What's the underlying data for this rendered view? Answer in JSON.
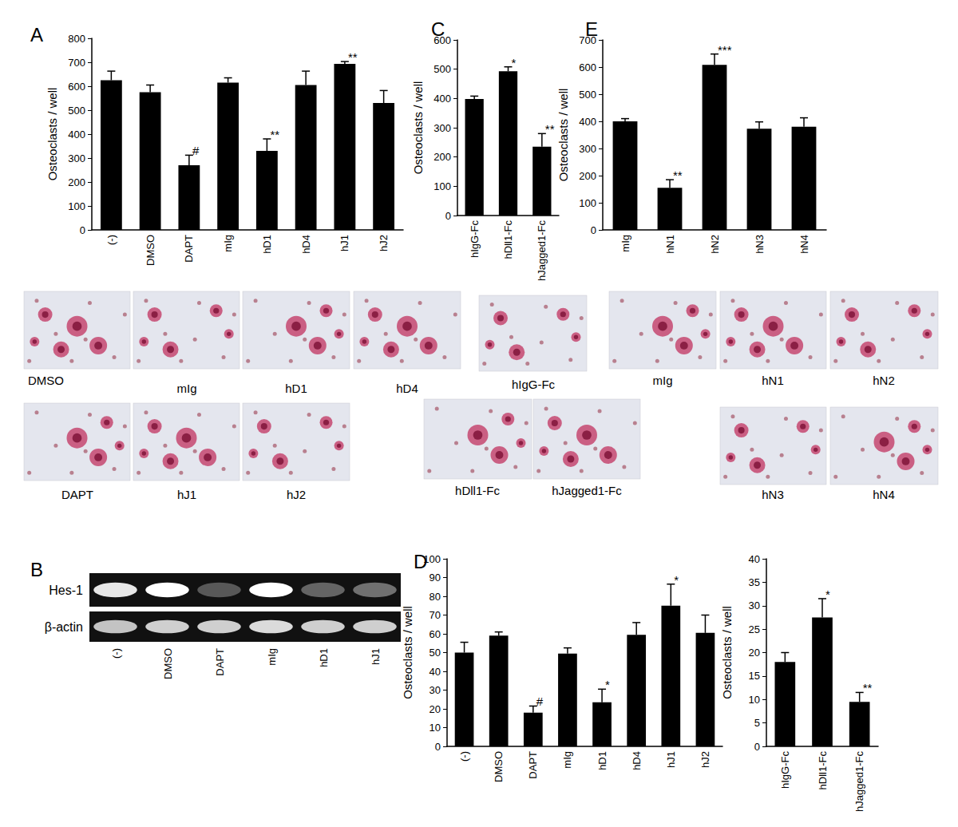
{
  "panel_labels": [
    "A",
    "B",
    "C",
    "D",
    "E"
  ],
  "chart_data": [
    {
      "type": "bar",
      "ylabel": "Osteoclasts / well",
      "color": "#000000",
      "categories": [
        "(-)",
        "DMSO",
        "DAPT",
        "mIg",
        "hD1",
        "hD4",
        "hJ1",
        "hJ2"
      ],
      "values": [
        625,
        575,
        270,
        615,
        330,
        605,
        693,
        530
      ],
      "errors": [
        38,
        30,
        42,
        20,
        50,
        58,
        10,
        52
      ],
      "annotations": [
        null,
        null,
        "#",
        null,
        "**",
        null,
        "**",
        null
      ],
      "ylim": [
        0,
        800
      ],
      "yticks": [
        0,
        100,
        200,
        300,
        400,
        500,
        600,
        700,
        800
      ]
    },
    {
      "type": "bar",
      "ylabel": "Osteoclasts / well",
      "color": "#000000",
      "categories": [
        "hIgG-Fc",
        "hDll1-Fc",
        "hJagged1-Fc"
      ],
      "values": [
        398,
        493,
        235
      ],
      "errors": [
        10,
        15,
        45
      ],
      "annotations": [
        null,
        "*",
        "**"
      ],
      "ylim": [
        0,
        600
      ],
      "yticks": [
        0,
        100,
        200,
        300,
        400,
        500,
        600
      ]
    },
    {
      "type": "bar",
      "ylabel": "Osteoclasts / well",
      "color": "#000000",
      "categories": [
        "mIg",
        "hN1",
        "hN2",
        "hN3",
        "hN4"
      ],
      "values": [
        400,
        155,
        608,
        373,
        380
      ],
      "errors": [
        10,
        30,
        40,
        25,
        33
      ],
      "annotations": [
        null,
        "**",
        "***",
        null,
        null
      ],
      "ylim": [
        0,
        700
      ],
      "yticks": [
        0,
        100,
        200,
        300,
        400,
        500,
        600,
        700
      ]
    },
    {
      "type": "bar",
      "ylabel": "Osteoclasts / well",
      "color": "#000000",
      "categories": [
        "(-)",
        "DMSO",
        "DAPT",
        "mIg",
        "hD1",
        "hD4",
        "hJ1",
        "hJ2"
      ],
      "values": [
        50,
        59,
        18,
        49.5,
        23.5,
        59.5,
        75,
        60.5
      ],
      "errors": [
        5.5,
        2,
        3.5,
        3,
        7,
        6.5,
        11.5,
        9.5
      ],
      "annotations": [
        null,
        null,
        "#",
        null,
        "*",
        null,
        "*",
        null
      ],
      "ylim": [
        0,
        100
      ],
      "yticks": [
        0,
        10,
        20,
        30,
        40,
        50,
        60,
        70,
        80,
        90,
        100
      ]
    },
    {
      "type": "bar",
      "ylabel": "Osteoclasts / well",
      "color": "#000000",
      "categories": [
        "hIgG-Fc",
        "hDll1-Fc",
        "hJagged1-Fc"
      ],
      "values": [
        18,
        27.5,
        9.5
      ],
      "errors": [
        2,
        4,
        2
      ],
      "annotations": [
        null,
        "*",
        "**"
      ],
      "ylim": [
        0,
        40
      ],
      "yticks": [
        0,
        5,
        10,
        15,
        20,
        25,
        30,
        35,
        40
      ]
    }
  ],
  "micrographs": [
    "DMSO",
    "mIg",
    "hD1",
    "hD4",
    "hIgG-Fc",
    "mIg",
    "hN1",
    "hN2",
    "DAPT",
    "hJ1",
    "hJ2",
    "hDll1-Fc",
    "hJagged1-Fc",
    "hN3",
    "hN4"
  ],
  "gel": {
    "lanes": [
      "(-)",
      "DMSO",
      "DAPT",
      "mIg",
      "hD1",
      "hJ1"
    ],
    "rows": [
      {
        "label": "Hes-1",
        "intensity": [
          0.9,
          1,
          0.3,
          1,
          0.35,
          0.4
        ]
      },
      {
        "label": "β-actin",
        "intensity": [
          0.75,
          0.8,
          0.8,
          0.85,
          0.8,
          0.8
        ]
      }
    ]
  }
}
